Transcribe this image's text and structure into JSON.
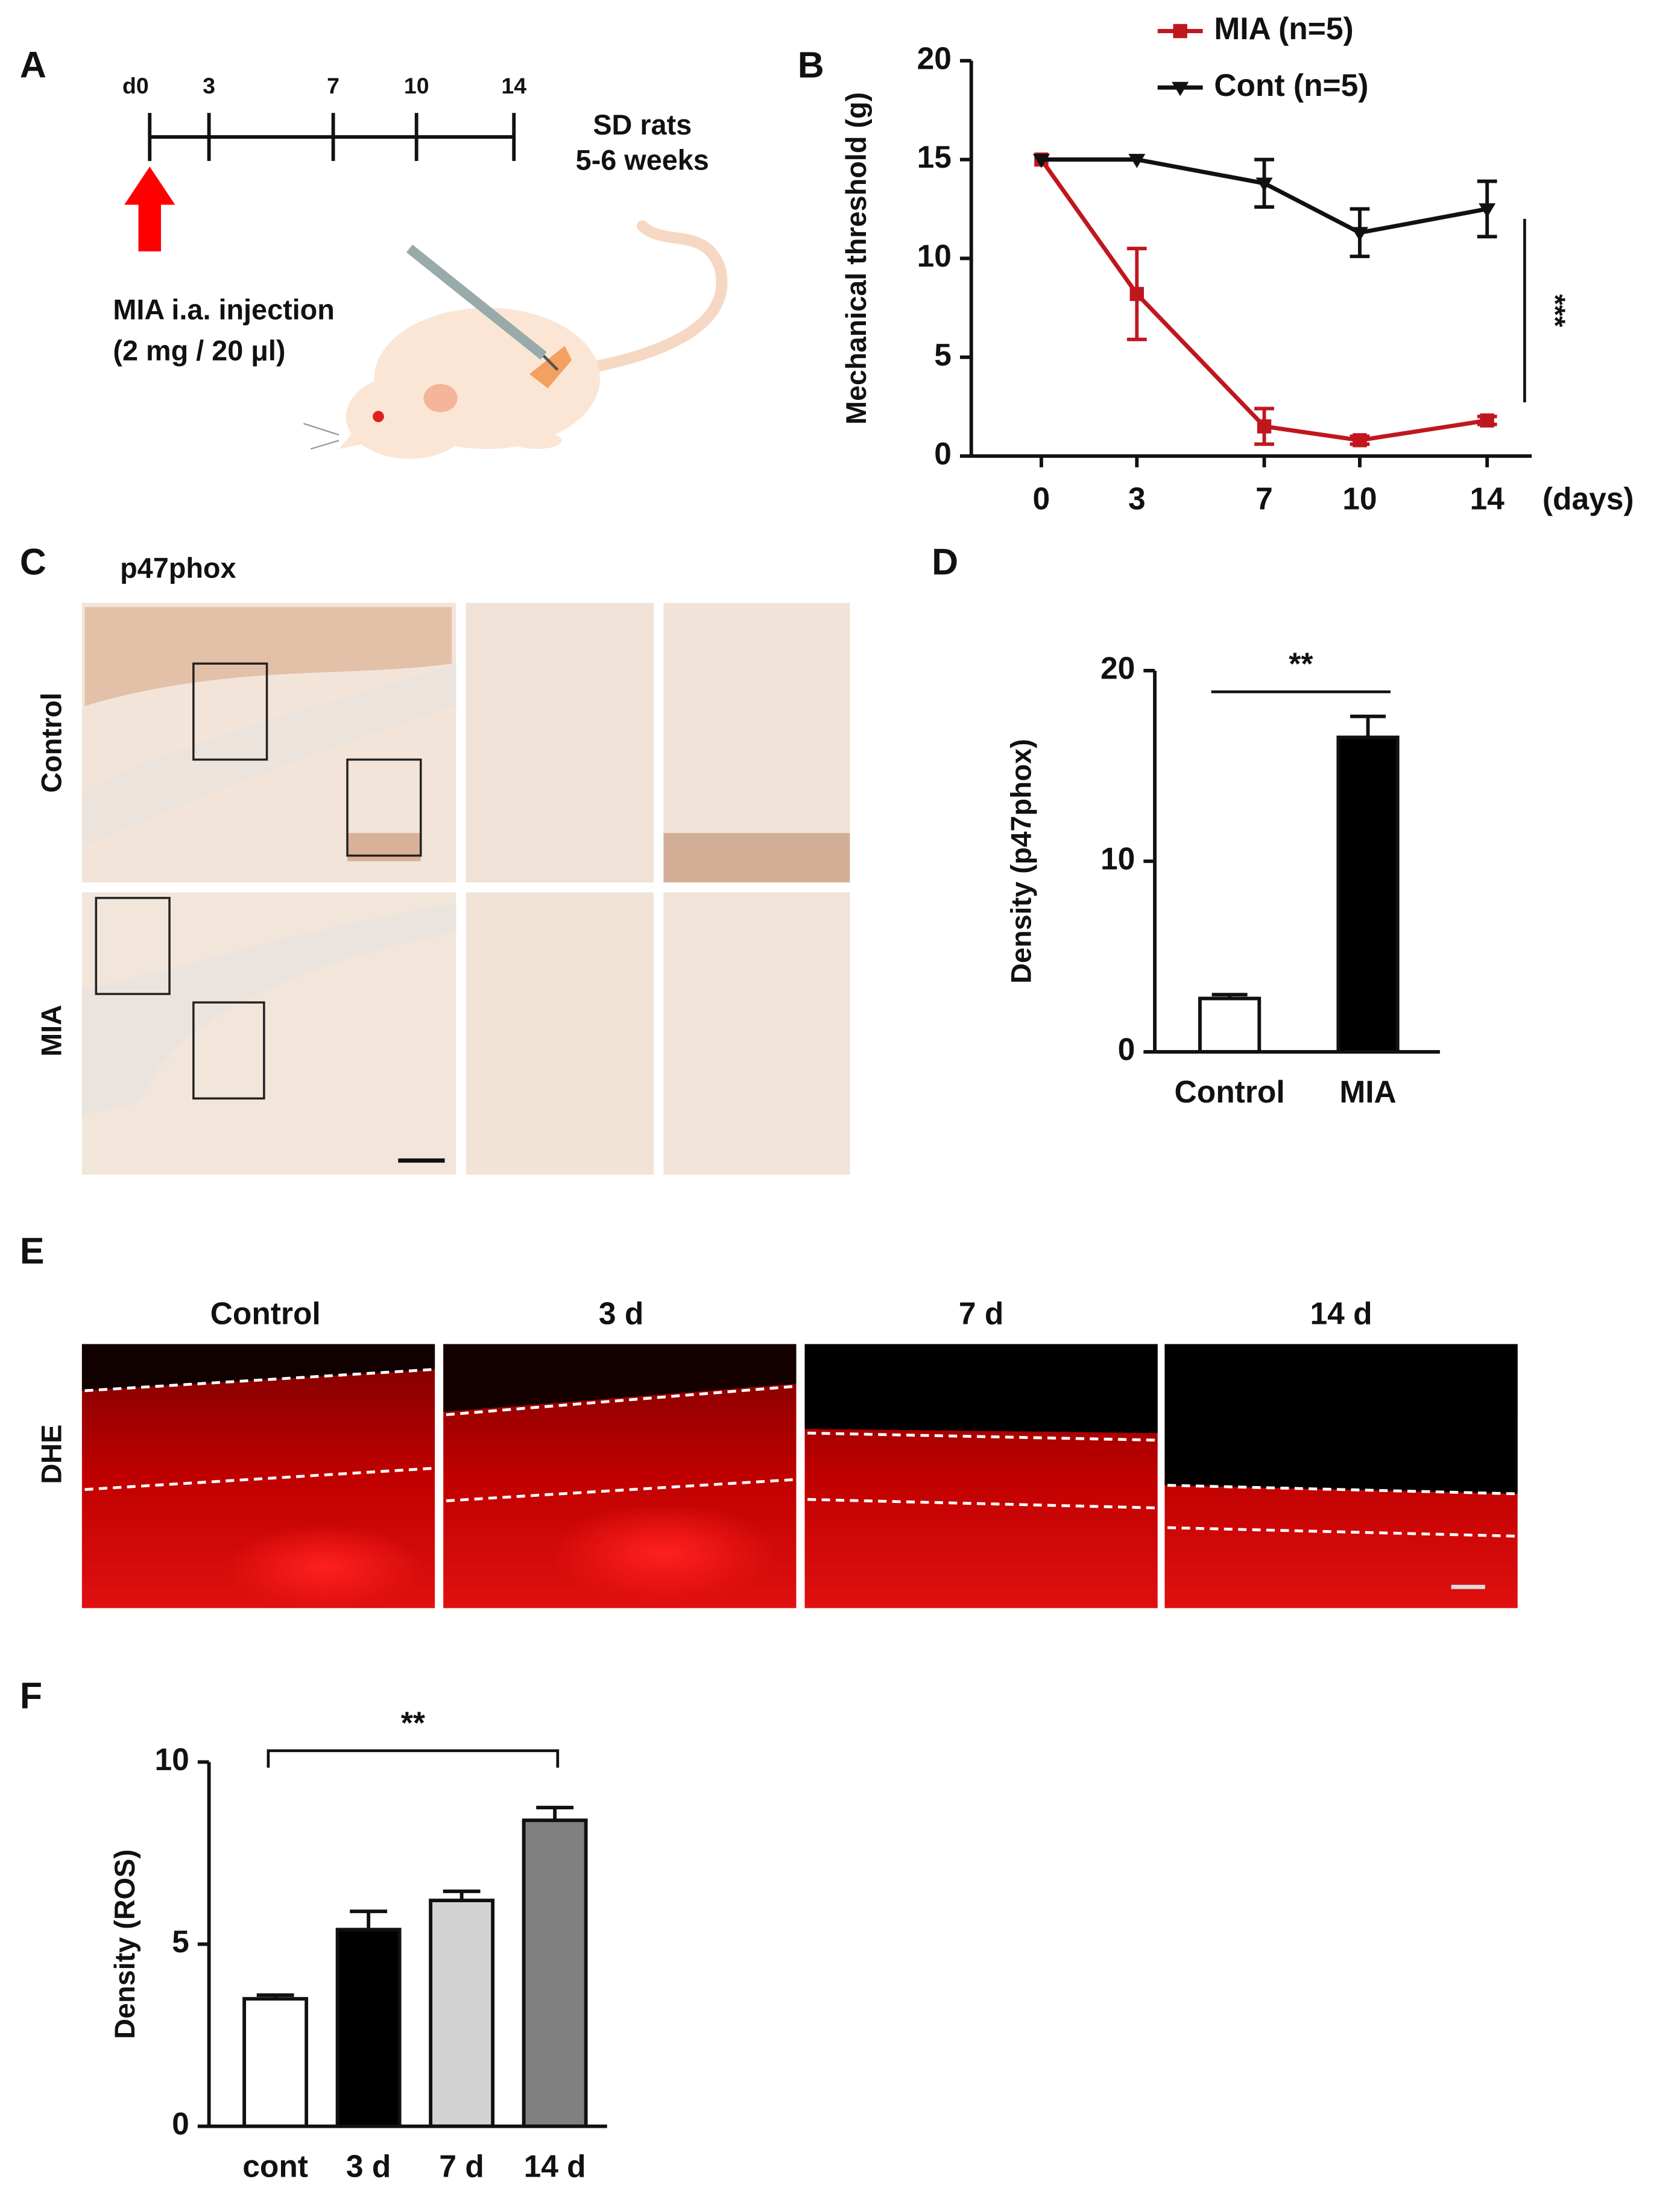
{
  "figure": {
    "panels": [
      "A",
      "B",
      "C",
      "D",
      "E",
      "F"
    ],
    "timeline": {
      "ticks": [
        "d0",
        "3",
        "7",
        "10",
        "14"
      ],
      "note": [
        "SD rats",
        "5-6 weeks"
      ],
      "injection": [
        "MIA i.a. injection",
        "(2 mg / 20 μl)"
      ]
    },
    "micrographs": {
      "stain": "p47phox",
      "rows": [
        "Control",
        "MIA"
      ]
    },
    "dhe": {
      "row": "DHE",
      "columns": [
        "Control",
        "3 d",
        "7 d",
        "14 d"
      ]
    }
  },
  "chart_data": [
    {
      "type": "line",
      "ylabel": "Mechanical threshold (g)",
      "xlabel": "(days)",
      "x": [
        0,
        3,
        7,
        10,
        14
      ],
      "xlim": [
        -2.2,
        15.4
      ],
      "xticks": [
        0,
        3,
        7,
        10,
        14
      ],
      "ylim": [
        0,
        20
      ],
      "yticks": [
        0,
        5,
        10,
        15,
        20
      ],
      "series": [
        {
          "name": "MIA (n=5)",
          "color": "#c0171e",
          "marker": "square",
          "values": [
            15,
            8.2,
            1.5,
            0.8,
            1.8
          ],
          "errors": [
            0,
            2.3,
            0.9,
            0.2,
            0.2
          ]
        },
        {
          "name": "Cont (n=5)",
          "color": "#111111",
          "marker": "triangle-down",
          "values": [
            15,
            15,
            13.8,
            11.3,
            12.5
          ],
          "errors": [
            0,
            0,
            1.2,
            1.2,
            1.4
          ]
        }
      ],
      "annotation": "***"
    },
    {
      "type": "bar",
      "ylabel": "Density (p47phox)",
      "categories": [
        "Control",
        "MIA"
      ],
      "values": [
        2.8,
        16.5
      ],
      "errors": [
        0.2,
        1.1
      ],
      "colors": [
        "#ffffff",
        "#000000"
      ],
      "ylim": [
        0,
        20
      ],
      "yticks": [
        0,
        10,
        20
      ],
      "annotation": "**"
    },
    {
      "type": "bar",
      "ylabel": "Density (ROS)",
      "categories": [
        "cont",
        "3 d",
        "7 d",
        "14 d"
      ],
      "values": [
        3.5,
        5.4,
        6.2,
        8.4
      ],
      "errors": [
        0.1,
        0.5,
        0.25,
        0.35
      ],
      "colors": [
        "#ffffff",
        "#000000",
        "#d3d3d3",
        "#808080"
      ],
      "ylim": [
        0,
        10
      ],
      "yticks": [
        0,
        5,
        10
      ],
      "annotation": "**"
    }
  ]
}
